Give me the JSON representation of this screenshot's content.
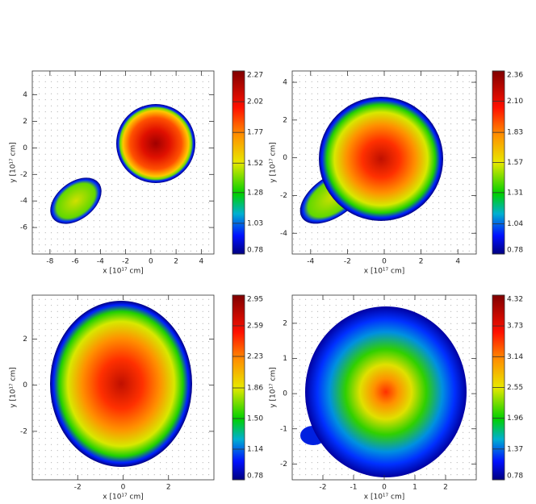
{
  "chart_data": [
    {
      "type": "image",
      "xlabel": "x [10¹⁷ cm]",
      "ylabel": "y [10¹⁷ cm]",
      "xlim": [
        -9.4,
        5
      ],
      "xticks": [
        -8,
        -6,
        -4,
        -2,
        0,
        2,
        4
      ],
      "ylim": [
        -8,
        5.8
      ],
      "yticks": [
        -6,
        -4,
        -2,
        0,
        2,
        4
      ],
      "colorbar_lim": [
        0.78,
        2.27
      ],
      "colorbar_ticks": [
        0.78,
        1.03,
        1.28,
        1.52,
        1.77,
        2.02,
        2.27
      ]
    },
    {
      "type": "image",
      "xlabel": "x [10¹⁷ cm]",
      "ylabel": "y [10¹⁷ cm]",
      "xlim": [
        -5,
        5
      ],
      "xticks": [
        -4,
        -2,
        0,
        2,
        4
      ],
      "ylim": [
        -5.1,
        4.6
      ],
      "yticks": [
        -4,
        -2,
        0,
        2,
        4
      ],
      "colorbar_lim": [
        0.78,
        2.36
      ],
      "colorbar_ticks": [
        0.78,
        1.04,
        1.31,
        1.57,
        1.83,
        {
          "value": 2.1,
          "label": "2.10"
        },
        2.36
      ]
    },
    {
      "type": "image",
      "xlabel": "x [10¹⁷ cm]",
      "ylabel": "y [10¹⁷ cm]",
      "xlim": [
        -4,
        4
      ],
      "xticks": [
        -2,
        0,
        2
      ],
      "ylim": [
        -4.1,
        3.9
      ],
      "yticks": [
        -2,
        0,
        2
      ],
      "colorbar_lim": [
        0.78,
        2.95
      ],
      "colorbar_ticks": [
        0.78,
        1.14,
        {
          "value": 1.5,
          "label": "1.50"
        },
        1.86,
        2.23,
        2.59,
        2.95
      ]
    },
    {
      "type": "image",
      "xlabel": "x [10¹⁷ cm]",
      "ylabel": "y [10¹⁷ cm]",
      "xlim": [
        -3,
        3
      ],
      "xticks": [
        -2,
        -1,
        0,
        1,
        2
      ],
      "ylim": [
        -2.45,
        2.8
      ],
      "yticks": [
        -2,
        -1,
        0,
        1,
        2
      ],
      "colorbar_lim": [
        0.78,
        4.32
      ],
      "colorbar_ticks": [
        0.78,
        1.37,
        1.96,
        2.55,
        3.14,
        3.73,
        4.32
      ]
    }
  ]
}
